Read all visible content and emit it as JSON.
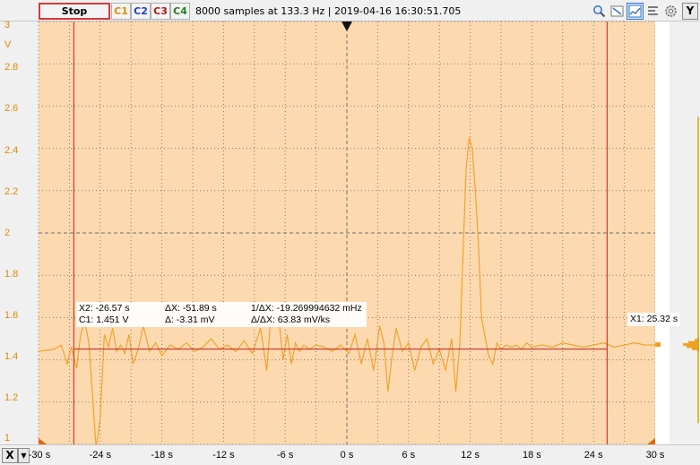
{
  "toolbar": {
    "stop_label": "Stop",
    "channels": [
      "C1",
      "C2",
      "C3",
      "C4"
    ],
    "info_text": "8000 samples at 133.3 Hz | 2019-04-16 16:30:51.705",
    "y_label": "Y"
  },
  "colors": {
    "plot_bg": "#fdd9b0",
    "trace": "#f0a020",
    "cursor": "#c81e1e",
    "c1": "#e08a00",
    "c2": "#1a3fc0",
    "c3": "#b01818",
    "c4": "#208020"
  },
  "y_axis": {
    "unit": "V",
    "ticks": [
      "3",
      "2.8",
      "2.6",
      "2.4",
      "2.2",
      "2",
      "1.8",
      "1.6",
      "1.4",
      "1.2",
      "1"
    ]
  },
  "x_axis": {
    "label": "X",
    "ticks": [
      "-30 s",
      "-24 s",
      "-18 s",
      "-12 s",
      "-6 s",
      "0 s",
      "6 s",
      "12 s",
      "18 s",
      "24 s",
      "30 s"
    ]
  },
  "cursors": {
    "x2_text": "X2: -26.57 s",
    "c1_text": "C1: 1.451 V",
    "dx_text": "ΔX: -51.89 s",
    "dy_text": "Δ: -3.31 mV",
    "inv_dx_text": "1/ΔX: -19.269994632 mHz",
    "dydx_text": "Δ/ΔX: 63.83 mV/ks",
    "x1_text": "X1: 25.32 s"
  },
  "chart_data": {
    "type": "line",
    "xlim": [
      -30,
      30
    ],
    "ylim": [
      1,
      3
    ],
    "x_unit": "s",
    "y_unit": "V",
    "grid": true,
    "cursor_x1": 25.32,
    "cursor_x2": -26.57,
    "cursor_level_y": 1.451,
    "trigger_x": 0,
    "series": [
      {
        "x": [
          -30,
          -28.5,
          -27.8,
          -27.2,
          -26.8,
          -26.3,
          -25.9,
          -25.5,
          -25.1,
          -24.7,
          -24.4,
          -24.0,
          -23.6,
          -23.2,
          -22.8,
          -22.4,
          -22.0,
          -21.6,
          -21.2,
          -20.8,
          -20.3,
          -19.8,
          -19.2,
          -18.6,
          -18.0,
          -17.2,
          -16.4,
          -15.6,
          -14.8,
          -14.0,
          -13.2,
          -12.4,
          -11.6,
          -10.8,
          -10.0,
          -9.2,
          -8.4,
          -7.8,
          -7.4,
          -7.0,
          -6.6,
          -6.2,
          -5.8,
          -5.4,
          -5.0,
          -4.6,
          -4.2,
          -3.6,
          -3.0,
          -2.2,
          -1.4,
          -0.6,
          0.2,
          0.8,
          1.4,
          2.0,
          2.6,
          3.2,
          3.6,
          4.0,
          4.4,
          4.8,
          5.4,
          6.0,
          6.6,
          7.2,
          7.8,
          8.4,
          9.0,
          9.6,
          10.2,
          10.6,
          11.0,
          11.3,
          11.6,
          11.9,
          12.2,
          12.5,
          12.8,
          13.1,
          13.4,
          13.8,
          14.2,
          14.6,
          15.0,
          15.5,
          16.0,
          16.5,
          17.0,
          17.5,
          18.0,
          19.0,
          20.0,
          21.0,
          22.0,
          23.0,
          24.0,
          25.0,
          26.0,
          27.0,
          28.0,
          29.0,
          30.0
        ],
        "y": [
          1.44,
          1.45,
          1.47,
          1.38,
          1.46,
          1.36,
          1.52,
          1.58,
          1.48,
          1.2,
          0.98,
          1.12,
          1.52,
          1.46,
          1.55,
          1.44,
          1.47,
          1.43,
          1.52,
          1.38,
          1.45,
          1.56,
          1.44,
          1.48,
          1.42,
          1.47,
          1.45,
          1.48,
          1.44,
          1.46,
          1.5,
          1.45,
          1.47,
          1.44,
          1.49,
          1.43,
          1.55,
          1.35,
          1.6,
          1.65,
          1.58,
          1.4,
          1.52,
          1.38,
          1.48,
          1.44,
          1.47,
          1.45,
          1.47,
          1.46,
          1.44,
          1.47,
          1.43,
          1.52,
          1.38,
          1.5,
          1.35,
          1.56,
          1.48,
          1.25,
          1.42,
          1.55,
          1.44,
          1.48,
          1.35,
          1.46,
          1.5,
          1.38,
          1.45,
          1.35,
          1.5,
          1.25,
          1.48,
          1.9,
          2.3,
          2.45,
          2.4,
          2.2,
          1.95,
          1.6,
          1.52,
          1.42,
          1.38,
          1.48,
          1.45,
          1.47,
          1.46,
          1.47,
          1.45,
          1.48,
          1.46,
          1.47,
          1.46,
          1.48,
          1.47,
          1.46,
          1.47,
          1.48,
          1.46,
          1.47,
          1.48,
          1.47,
          1.47
        ]
      }
    ]
  }
}
